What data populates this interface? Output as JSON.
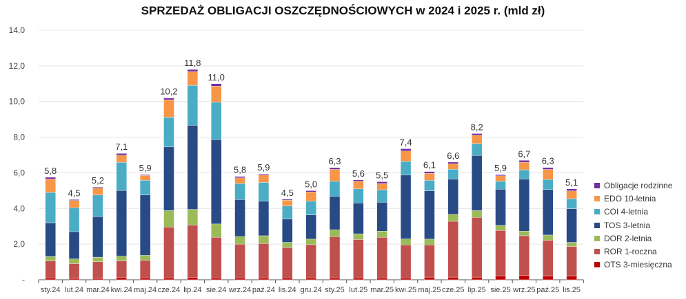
{
  "chart_data": {
    "type": "stacked-bar",
    "title": "SPRZEDAŻ OBLIGACJI OSZCZĘDNOŚCIOWYCH w 2024 i 2025 r. (mld zł)",
    "xlabel": "",
    "ylabel": "",
    "ylim": [
      0,
      14
    ],
    "yticks": [
      "-",
      "2,0",
      "4,0",
      "6,0",
      "8,0",
      "10,0",
      "12,0",
      "14,0"
    ],
    "grid": true,
    "legend_position": "right",
    "categories": [
      "sty.24",
      "lut.24",
      "mar.24",
      "kwi.24",
      "maj.24",
      "cze.24",
      "lip.24",
      "sie.24",
      "wrz.24",
      "paź.24",
      "lis.24",
      "gru.24",
      "sty.25",
      "lut.25",
      "mar.25",
      "kwi.25",
      "maj.25",
      "cze.25",
      "lip.25",
      "sie.25",
      "wrz.25",
      "paź.25",
      "lis.25"
    ],
    "totals": [
      "5,8",
      "4,5",
      "5,2",
      "7,1",
      "5,9",
      "10,2",
      "11,8",
      "11,0",
      "5,8",
      "5,9",
      "4,5",
      "5,0",
      "6,3",
      "5,6",
      "5,5",
      "7,4",
      "6,1",
      "6,6",
      "8,2",
      "5,9",
      "6,7",
      "6,3",
      "5,1"
    ],
    "series": [
      {
        "name": "OTS 3-miesięczna",
        "color": "#C00000",
        "values": [
          0.1,
          0.08,
          0.08,
          0.14,
          0.1,
          0.1,
          0.14,
          0.1,
          0.1,
          0.1,
          0.1,
          0.1,
          0.1,
          0.1,
          0.1,
          0.1,
          0.15,
          0.15,
          0.15,
          0.2,
          0.25,
          0.2,
          0.2
        ]
      },
      {
        "name": "ROR 1-roczna",
        "color": "#C0504D",
        "values": [
          0.95,
          0.83,
          0.93,
          0.92,
          0.99,
          2.86,
          2.93,
          2.28,
          1.9,
          1.94,
          1.71,
          1.87,
          2.32,
          2.16,
          2.28,
          1.86,
          1.81,
          3.13,
          3.35,
          2.57,
          2.22,
          2.02,
          1.67
        ]
      },
      {
        "name": "DOR 2-letnia",
        "color": "#9BBB59",
        "values": [
          0.25,
          0.26,
          0.26,
          0.26,
          0.28,
          0.92,
          0.88,
          0.75,
          0.42,
          0.43,
          0.29,
          0.31,
          0.38,
          0.32,
          0.35,
          0.33,
          0.32,
          0.39,
          0.38,
          0.28,
          0.26,
          0.29,
          0.23
        ]
      },
      {
        "name": "TOS 3-letnia",
        "color": "#284A85",
        "values": [
          1.9,
          1.53,
          2.27,
          3.69,
          3.39,
          3.57,
          4.72,
          4.73,
          2.08,
          1.94,
          1.31,
          1.36,
          1.89,
          1.73,
          1.62,
          3.58,
          2.71,
          1.98,
          3.09,
          2.03,
          2.92,
          2.55,
          1.89
        ]
      },
      {
        "name": "COI 4-letnia",
        "color": "#4BACC6",
        "values": [
          1.7,
          1.34,
          1.22,
          1.58,
          0.82,
          1.67,
          2.24,
          2.11,
          0.9,
          1.05,
          0.73,
          0.77,
          0.84,
          0.79,
          0.7,
          0.77,
          0.59,
          0.55,
          0.67,
          0.45,
          0.52,
          0.57,
          0.56
        ]
      },
      {
        "name": "EDO 10-letnia",
        "color": "#F79646",
        "values": [
          0.75,
          0.41,
          0.38,
          0.4,
          0.27,
          0.98,
          0.77,
          0.89,
          0.32,
          0.41,
          0.33,
          0.52,
          0.66,
          0.43,
          0.35,
          0.58,
          0.39,
          0.31,
          0.47,
          0.3,
          0.42,
          0.56,
          0.44
        ]
      },
      {
        "name": "Obligacje rodzinne",
        "color": "#7030A0",
        "values": [
          0.1,
          0.05,
          0.06,
          0.1,
          0.05,
          0.1,
          0.12,
          0.14,
          0.08,
          0.06,
          0.05,
          0.07,
          0.1,
          0.07,
          0.1,
          0.13,
          0.1,
          0.09,
          0.09,
          0.07,
          0.11,
          0.11,
          0.11
        ]
      }
    ]
  }
}
